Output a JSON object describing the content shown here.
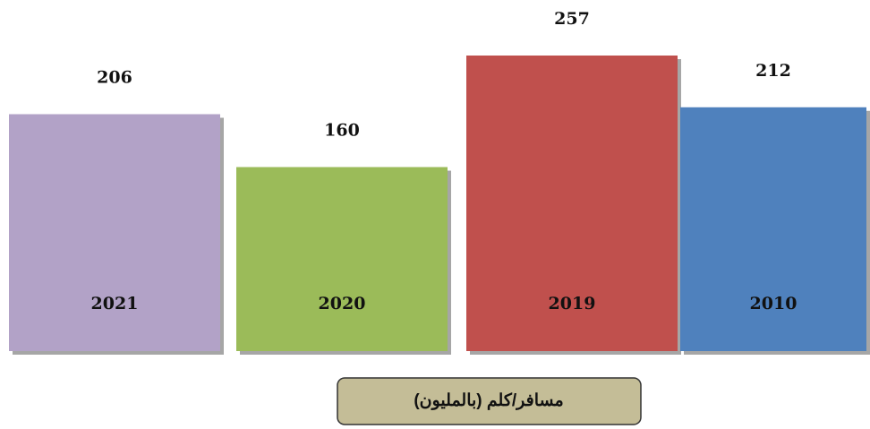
{
  "chart_data": {
    "type": "bar",
    "title": "مسافر/كلم (بالمليون)",
    "categories": [
      "2021",
      "2020",
      "2019",
      "2010"
    ],
    "values": [
      206,
      160,
      257,
      212
    ],
    "colors": [
      "#b2a2c7",
      "#9bbb59",
      "#c0504d",
      "#4f81bd"
    ]
  }
}
